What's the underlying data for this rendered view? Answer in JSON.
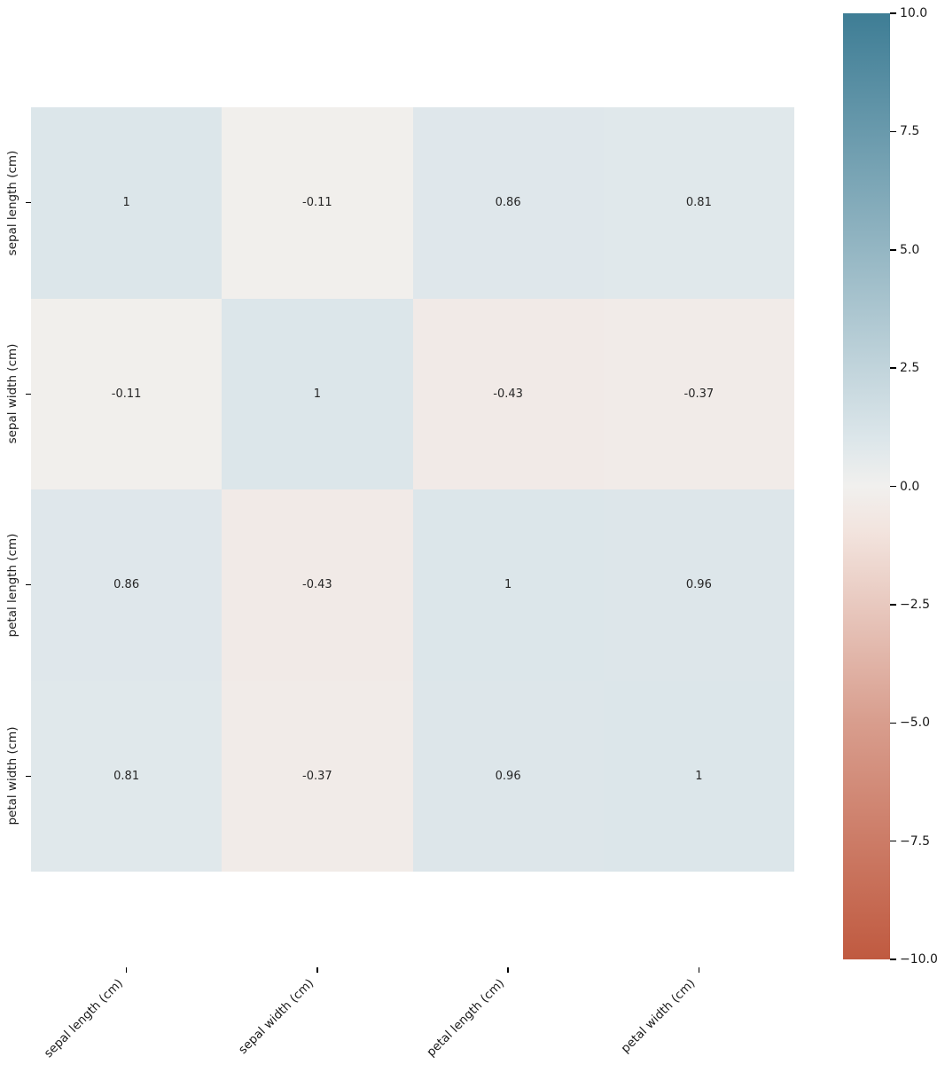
{
  "chart_data": {
    "type": "heatmap",
    "title": "",
    "description": "Correlation matrix heatmap of iris dataset features with annotated values",
    "x_labels": [
      "sepal length (cm)",
      "sepal width (cm)",
      "petal length (cm)",
      "petal width (cm)"
    ],
    "y_labels": [
      "sepal length (cm)",
      "sepal width (cm)",
      "petal length (cm)",
      "petal width (cm)"
    ],
    "matrix": [
      [
        1,
        -0.11,
        0.86,
        0.81
      ],
      [
        -0.11,
        1,
        -0.43,
        -0.37
      ],
      [
        0.86,
        -0.43,
        1,
        0.96
      ],
      [
        0.81,
        -0.37,
        0.96,
        1
      ]
    ],
    "annotations": [
      [
        "1",
        "-0.11",
        "0.86",
        "0.81"
      ],
      [
        "-0.11",
        "1",
        "-0.43",
        "-0.37"
      ],
      [
        "0.86",
        "-0.43",
        "1",
        "0.96"
      ],
      [
        "0.81",
        "-0.37",
        "0.96",
        "1"
      ]
    ],
    "vmin": -10,
    "vmax": 10,
    "grid": false,
    "annotation_color": "#262626",
    "colorbar": {
      "position": "right",
      "ticks": [
        "10.0",
        "7.5",
        "5.0",
        "2.5",
        "0.0",
        "−2.5",
        "−5.0",
        "−7.5",
        "−10.0"
      ],
      "tick_values": [
        10,
        7.5,
        5,
        2.5,
        0,
        -2.5,
        -5,
        -7.5,
        -10
      ],
      "gradient_stops": [
        {
          "t": 0.0,
          "color": "#c05a40"
        },
        {
          "t": 0.25,
          "color": "#d89d8d"
        },
        {
          "t": 0.45,
          "color": "#f2e3dd"
        },
        {
          "t": 0.5,
          "color": "#f1f0ee"
        },
        {
          "t": 0.55,
          "color": "#dce6ea"
        },
        {
          "t": 0.75,
          "color": "#94b6c3"
        },
        {
          "t": 1.0,
          "color": "#3e7d95"
        }
      ]
    }
  }
}
